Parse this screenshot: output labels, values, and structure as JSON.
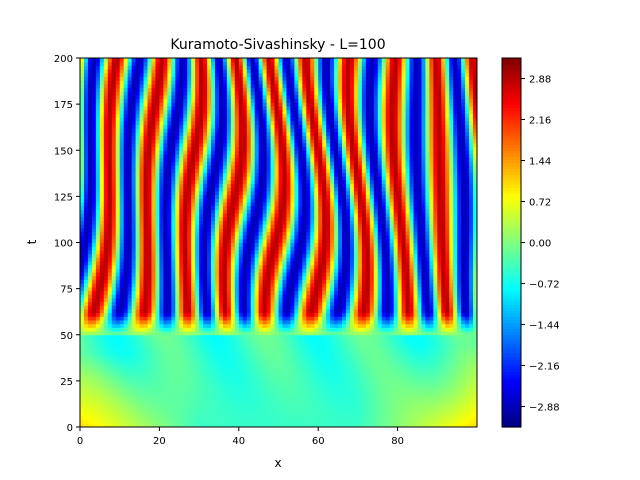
{
  "chart_data": {
    "type": "heatmap",
    "title": "Kuramoto-Sivashinsky - L=100",
    "xlabel": "x",
    "ylabel": "t",
    "xlim": [
      0,
      100
    ],
    "ylim": [
      0,
      200
    ],
    "x_ticks": [
      {
        "value": 0,
        "label": "0"
      },
      {
        "value": 20,
        "label": "20"
      },
      {
        "value": 40,
        "label": "40"
      },
      {
        "value": 60,
        "label": "60"
      },
      {
        "value": 80,
        "label": "80"
      }
    ],
    "y_ticks": [
      {
        "value": 0,
        "label": "0"
      },
      {
        "value": 25,
        "label": "25"
      },
      {
        "value": 50,
        "label": "50"
      },
      {
        "value": 75,
        "label": "75"
      },
      {
        "value": 100,
        "label": "100"
      },
      {
        "value": 125,
        "label": "125"
      },
      {
        "value": 150,
        "label": "150"
      },
      {
        "value": 175,
        "label": "175"
      },
      {
        "value": 200,
        "label": "200"
      }
    ],
    "colormap": "jet",
    "color_range": [
      -3.24,
      3.24
    ],
    "colorbar_ticks": [
      {
        "value": -2.88,
        "label": "−2.88"
      },
      {
        "value": -2.16,
        "label": "−2.16"
      },
      {
        "value": -1.44,
        "label": "−1.44"
      },
      {
        "value": -0.72,
        "label": "−0.72"
      },
      {
        "value": 0.0,
        "label": "0.00"
      },
      {
        "value": 0.72,
        "label": "0.72"
      },
      {
        "value": 1.44,
        "label": "1.44"
      },
      {
        "value": 2.16,
        "label": "2.16"
      },
      {
        "value": 2.88,
        "label": "2.88"
      }
    ],
    "field_regimes": [
      {
        "t_range": [
          0,
          50
        ],
        "pattern": "smooth low-amplitude field, ~0 to 1 near edges, ~-0.5 interior"
      },
      {
        "t_range": [
          50,
          200
        ],
        "pattern": "chaotic alternating stripes, amplitude about ±2.9"
      }
    ],
    "grid": false
  }
}
